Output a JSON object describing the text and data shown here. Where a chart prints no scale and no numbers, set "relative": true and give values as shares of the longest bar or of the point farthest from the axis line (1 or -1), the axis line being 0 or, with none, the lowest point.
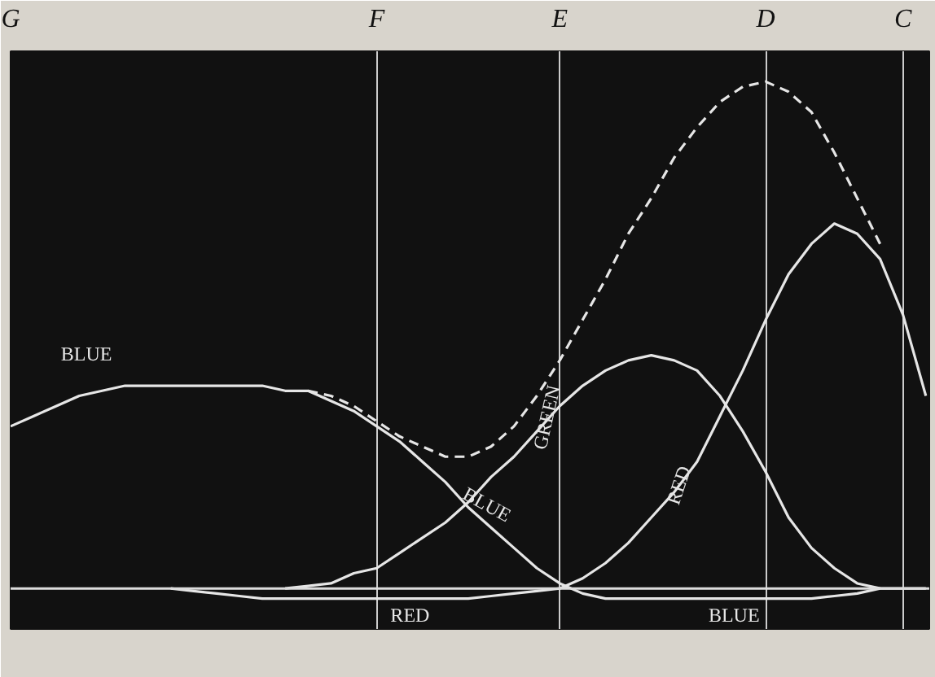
{
  "chart_data": {
    "type": "line",
    "relative": true,
    "grid": "x",
    "line_style": "solid",
    "marker": "none",
    "categories": [
      "G",
      null,
      null,
      null,
      null,
      null,
      null,
      null,
      null,
      null,
      null,
      null,
      null,
      null,
      null,
      null,
      "F",
      null,
      null,
      null,
      null,
      null,
      null,
      null,
      "E",
      null,
      null,
      null,
      null,
      null,
      null,
      null,
      null,
      "D",
      null,
      null,
      null,
      null,
      null,
      "C",
      null
    ],
    "series": [
      {
        "name": "BLUE",
        "color": "#e6e6e6",
        "values": [
          0.32,
          0.34,
          0.36,
          0.38,
          0.39,
          0.4,
          0.4,
          0.4,
          0.4,
          0.4,
          0.4,
          0.4,
          0.39,
          0.39,
          0.37,
          0.35,
          0.32,
          0.29,
          0.25,
          0.21,
          0.16,
          0.12,
          0.08,
          0.04,
          0.01,
          -0.01,
          -0.02,
          -0.02,
          -0.02,
          -0.02,
          -0.02,
          -0.02,
          -0.02,
          -0.02,
          -0.02,
          -0.02,
          -0.015,
          -0.01,
          0,
          0,
          0
        ]
      },
      {
        "name": "GREEN",
        "color": "#e6e6e6",
        "values": [
          null,
          null,
          null,
          null,
          null,
          null,
          null,
          null,
          null,
          null,
          null,
          null,
          0,
          0.005,
          0.01,
          0.03,
          0.04,
          0.07,
          0.1,
          0.13,
          0.17,
          0.22,
          0.26,
          0.31,
          0.36,
          0.4,
          0.43,
          0.45,
          0.46,
          0.45,
          0.43,
          0.38,
          0.31,
          0.23,
          0.14,
          0.08,
          0.04,
          0.01,
          0,
          null,
          null
        ]
      },
      {
        "name": "RED",
        "color": "#e6e6e6",
        "values": [
          null,
          null,
          null,
          null,
          null,
          null,
          null,
          0,
          -0.005,
          -0.01,
          -0.015,
          -0.02,
          -0.02,
          -0.02,
          -0.02,
          -0.02,
          -0.02,
          -0.02,
          -0.02,
          -0.02,
          -0.02,
          -0.015,
          -0.01,
          -0.005,
          0,
          0.02,
          0.05,
          0.09,
          0.14,
          0.19,
          0.25,
          0.34,
          0.43,
          0.53,
          0.62,
          0.68,
          0.72,
          0.7,
          0.65,
          0.54,
          0.38
        ]
      },
      {
        "color": "#e6e6e6",
        "line_style": "dashed",
        "values": [
          null,
          null,
          null,
          null,
          null,
          null,
          null,
          null,
          null,
          null,
          null,
          null,
          null,
          0.39,
          0.38,
          0.36,
          0.33,
          0.3,
          0.28,
          0.26,
          0.26,
          0.28,
          0.32,
          0.38,
          0.45,
          0.53,
          0.61,
          0.7,
          0.77,
          0.85,
          0.91,
          0.96,
          0.99,
          1.0,
          0.98,
          0.94,
          0.86,
          0.77,
          0.68,
          null,
          null
        ]
      }
    ],
    "annotations": [
      "BLUE",
      "RED",
      "BLUE"
    ]
  }
}
